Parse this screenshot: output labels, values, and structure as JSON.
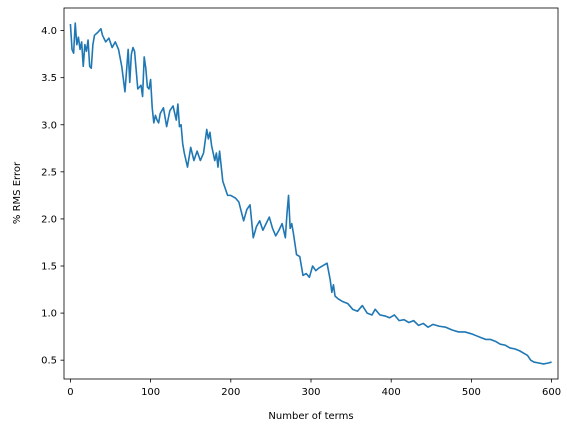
{
  "chart_data": {
    "type": "line",
    "title": "",
    "xlabel": "Number of terms",
    "ylabel": "% RMS Error",
    "xlim": [
      -8,
      608
    ],
    "ylim": [
      0.3,
      4.24
    ],
    "x_ticks": [
      0,
      100,
      200,
      300,
      400,
      500,
      600
    ],
    "x_tick_labels": [
      "0",
      "100",
      "200",
      "300",
      "400",
      "500",
      "600"
    ],
    "y_ticks": [
      0.5,
      1.0,
      1.5,
      2.0,
      2.5,
      3.0,
      3.5,
      4.0
    ],
    "y_tick_labels": [
      "0.5",
      "1.0",
      "1.5",
      "2.0",
      "2.5",
      "3.0",
      "3.5",
      "4.0"
    ],
    "grid": false,
    "colors": {
      "series": "#1f77b4",
      "axes": "#000000",
      "background": "#ffffff"
    },
    "series": [
      {
        "name": "",
        "x": [
          0,
          2,
          4,
          6,
          8,
          10,
          12,
          14,
          16,
          18,
          20,
          22,
          24,
          26,
          28,
          30,
          34,
          38,
          40,
          44,
          48,
          52,
          56,
          60,
          64,
          68,
          72,
          74,
          76,
          78,
          80,
          84,
          88,
          90,
          92,
          94,
          96,
          98,
          100,
          102,
          104,
          106,
          108,
          110,
          112,
          116,
          120,
          124,
          128,
          132,
          134,
          136,
          138,
          140,
          142,
          146,
          150,
          154,
          158,
          162,
          166,
          170,
          172,
          174,
          176,
          180,
          182,
          184,
          186,
          190,
          196,
          200,
          206,
          210,
          216,
          220,
          224,
          228,
          232,
          236,
          240,
          244,
          248,
          252,
          256,
          260,
          264,
          268,
          270,
          272,
          274,
          276,
          278,
          282,
          286,
          290,
          294,
          298,
          302,
          306,
          310,
          314,
          320,
          324,
          326,
          328,
          330,
          334,
          340,
          346,
          352,
          358,
          364,
          370,
          376,
          380,
          386,
          392,
          398,
          404,
          410,
          416,
          422,
          428,
          434,
          440,
          446,
          452,
          460,
          468,
          476,
          484,
          492,
          500,
          506,
          512,
          518,
          524,
          530,
          536,
          542,
          548,
          554,
          560,
          566,
          570,
          574,
          578,
          584,
          590,
          596,
          600
        ],
        "y": [
          4.07,
          3.8,
          3.76,
          4.08,
          3.85,
          3.93,
          3.8,
          3.88,
          3.62,
          3.85,
          3.78,
          3.9,
          3.62,
          3.6,
          3.85,
          3.95,
          3.98,
          4.02,
          3.95,
          3.88,
          3.92,
          3.82,
          3.88,
          3.8,
          3.62,
          3.35,
          3.8,
          3.45,
          3.75,
          3.82,
          3.78,
          3.38,
          3.42,
          3.3,
          3.72,
          3.6,
          3.4,
          3.38,
          3.48,
          3.18,
          3.02,
          3.1,
          3.05,
          3.02,
          3.12,
          3.18,
          2.98,
          3.15,
          3.2,
          3.05,
          3.22,
          2.98,
          3.0,
          2.8,
          2.7,
          2.55,
          2.76,
          2.62,
          2.72,
          2.62,
          2.7,
          2.95,
          2.85,
          2.92,
          2.78,
          2.62,
          2.7,
          2.55,
          2.72,
          2.4,
          2.25,
          2.25,
          2.22,
          2.18,
          1.98,
          2.1,
          2.15,
          1.8,
          1.92,
          1.98,
          1.88,
          1.95,
          2.02,
          1.9,
          1.82,
          1.88,
          1.95,
          1.8,
          2.05,
          2.25,
          1.9,
          1.95,
          1.85,
          1.62,
          1.6,
          1.4,
          1.42,
          1.38,
          1.5,
          1.45,
          1.48,
          1.5,
          1.53,
          1.35,
          1.22,
          1.3,
          1.18,
          1.15,
          1.12,
          1.1,
          1.04,
          1.02,
          1.08,
          1.0,
          0.98,
          1.04,
          0.98,
          0.97,
          0.95,
          0.98,
          0.92,
          0.93,
          0.9,
          0.92,
          0.87,
          0.89,
          0.85,
          0.88,
          0.86,
          0.85,
          0.82,
          0.8,
          0.8,
          0.78,
          0.76,
          0.74,
          0.72,
          0.72,
          0.7,
          0.67,
          0.66,
          0.63,
          0.62,
          0.6,
          0.57,
          0.55,
          0.5,
          0.48,
          0.47,
          0.46,
          0.47,
          0.48
        ]
      }
    ]
  }
}
